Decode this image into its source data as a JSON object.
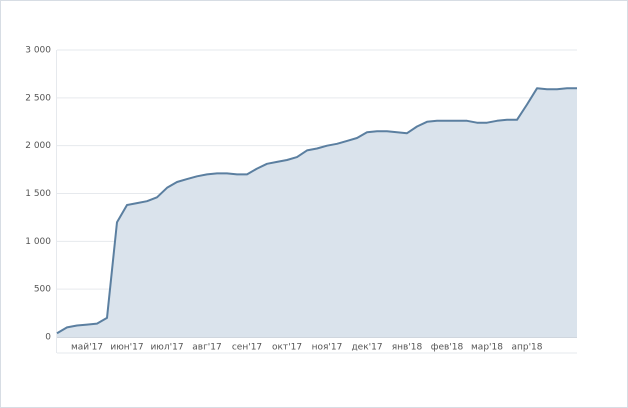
{
  "chart_data": {
    "type": "area",
    "categories": [
      null,
      null,
      null,
      "май'17",
      null,
      null,
      null,
      "июн'17",
      null,
      null,
      null,
      "июл'17",
      null,
      null,
      null,
      "авг'17",
      null,
      null,
      null,
      "сен'17",
      null,
      null,
      null,
      "окт'17",
      null,
      null,
      null,
      "ноя'17",
      null,
      null,
      null,
      "дек'17",
      null,
      null,
      null,
      "янв'18",
      null,
      null,
      null,
      "фев'18",
      null,
      null,
      null,
      "мар'18",
      null,
      null,
      null,
      "апр'18",
      null,
      null,
      null,
      null,
      null
    ],
    "values": [
      40,
      100,
      120,
      130,
      140,
      200,
      1200,
      1380,
      1400,
      1420,
      1460,
      1560,
      1620,
      1650,
      1680,
      1700,
      1710,
      1710,
      1700,
      1700,
      1760,
      1810,
      1830,
      1850,
      1880,
      1950,
      1970,
      2000,
      2020,
      2050,
      2080,
      2140,
      2150,
      2150,
      2140,
      2130,
      2200,
      2250,
      2260,
      2260,
      2260,
      2260,
      2240,
      2240,
      2260,
      2270,
      2270,
      2430,
      2600,
      2590,
      2590,
      2600,
      2600
    ],
    "color": "#5b7fa0",
    "fill": "#dae3ec",
    "ylim": [
      0,
      3000
    ],
    "yticks": [
      0,
      500,
      {
        "value": 1000,
        "label": "1 000"
      },
      {
        "value": 1500,
        "label": "1 500"
      },
      {
        "value": 2000,
        "label": "2 000"
      },
      {
        "value": 2500,
        "label": "2 500"
      },
      {
        "value": 3000,
        "label": "3 000"
      }
    ],
    "grid": true
  }
}
